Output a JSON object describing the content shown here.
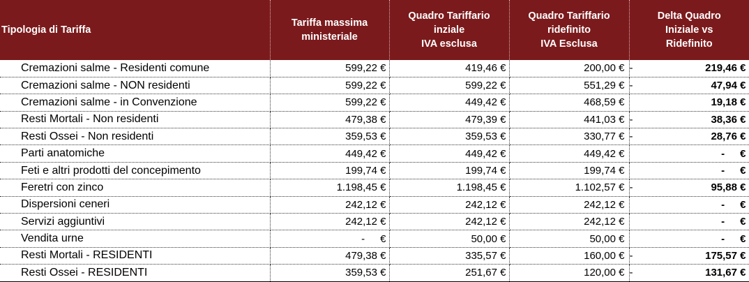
{
  "header": {
    "col0": "Tipologia di Tariffa",
    "col1": [
      "Tariffa massima",
      "ministeriale"
    ],
    "col2": [
      "Quadro Tariffario",
      "inziale",
      "IVA esclusa"
    ],
    "col3": [
      "Quadro Tariffario",
      "ridefinito",
      "IVA Esclusa"
    ],
    "col4": [
      "Delta Quadro",
      "Iniziale vs",
      "Ridefinito"
    ]
  },
  "rows": [
    {
      "name": "Cremazioni salme - Residenti comune",
      "max": "599,22 €",
      "initial": "419,46 €",
      "redefined": "200,00 €",
      "redef_dash": "-",
      "delta": "219,46 €"
    },
    {
      "name": "Cremazioni salme - NON residenti",
      "max": "599,22 €",
      "initial": "599,22 €",
      "redefined": "551,29 €",
      "redef_dash": "-",
      "delta": "47,94 €"
    },
    {
      "name": "Cremazioni salme - in Convenzione",
      "max": "599,22 €",
      "initial": "449,42 €",
      "redefined": "468,59 €",
      "redef_dash": "",
      "delta": "19,18 €"
    },
    {
      "name": "Resti Mortali - Non residenti",
      "max": "479,38 €",
      "initial": "479,39 €",
      "redefined": "441,03 €",
      "redef_dash": "-",
      "delta": "38,36 €"
    },
    {
      "name": "Resti Ossei - Non residenti",
      "max": "359,53 €",
      "initial": "359,53 €",
      "redefined": "330,77 €",
      "redef_dash": "-",
      "delta": "28,76 €"
    },
    {
      "name": "Parti anatomiche",
      "max": "449,42 €",
      "initial": "449,42 €",
      "redefined": "449,42 €",
      "redef_dash": "",
      "delta_zero": [
        "-",
        "€"
      ]
    },
    {
      "name": "Feti e altri prodotti del concepimento",
      "max": "199,74 €",
      "initial": "199,74 €",
      "redefined": "199,74 €",
      "redef_dash": "",
      "delta_zero": [
        "-",
        "€"
      ]
    },
    {
      "name": "Feretri con zinco",
      "max": "1.198,45 €",
      "initial": "1.198,45 €",
      "redefined": "1.102,57 €",
      "redef_dash": "-",
      "delta": "95,88 €"
    },
    {
      "name": "Dispersioni ceneri",
      "max": "242,12 €",
      "initial": "242,12 €",
      "redefined": "242,12 €",
      "redef_dash": "",
      "delta_zero": [
        "-",
        "€"
      ]
    },
    {
      "name": "Servizi aggiuntivi",
      "max": "242,12 €",
      "initial": "242,12 €",
      "redefined": "242,12 €",
      "redef_dash": "",
      "delta_zero": [
        "-",
        "€"
      ]
    },
    {
      "name": "Vendita urne",
      "max_zero": [
        "-",
        "€"
      ],
      "initial": "50,00 €",
      "redefined": "50,00 €",
      "redef_dash": "",
      "delta_zero": [
        "-",
        "€"
      ]
    },
    {
      "name": "Resti Mortali - RESIDENTI",
      "max": "479,38 €",
      "initial": "335,57 €",
      "redefined": "160,00 €",
      "redef_dash": "-",
      "delta": "175,57 €"
    },
    {
      "name": "Resti Ossei - RESIDENTI",
      "max": "359,53 €",
      "initial": "251,67 €",
      "redefined": "120,00 €",
      "redef_dash": "-",
      "delta": "131,67 €"
    }
  ],
  "colors": {
    "header_bg": "#7b1a1c",
    "header_text": "#ffffff"
  }
}
